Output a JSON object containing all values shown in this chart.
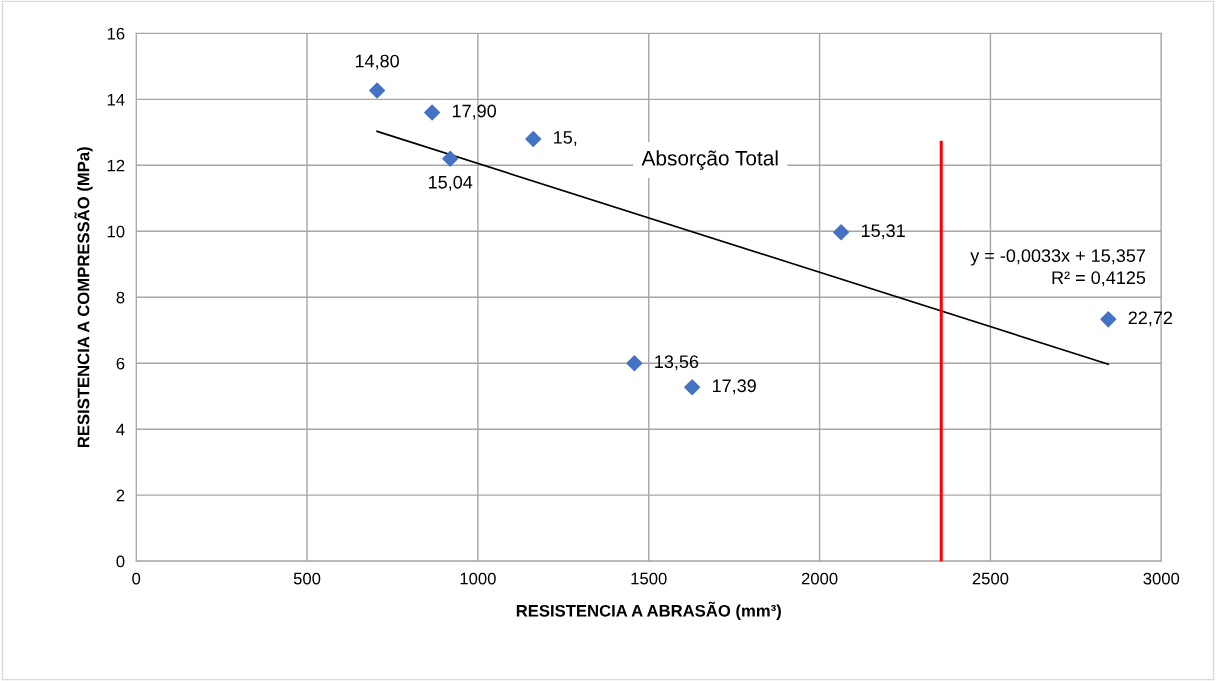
{
  "chart_data": {
    "type": "scatter",
    "xlabel": "RESISTENCIA A ABRASÃO (mm³)",
    "ylabel": "RESISTENCIA A COMPRESSÃO (MPa)",
    "xlim": [
      0,
      3000
    ],
    "xticks": [
      0,
      500,
      1000,
      1500,
      2000,
      2500,
      3000
    ],
    "ylim": [
      0,
      16
    ],
    "yticks": [
      0,
      2,
      4,
      6,
      8,
      10,
      12,
      14,
      16
    ],
    "grid": true,
    "legend": false,
    "series": [
      {
        "marker": "diamond",
        "color": "#4472c4",
        "x": [
          705,
          866,
          919,
          1162,
          1458,
          1627,
          2063,
          2845
        ],
        "values": [
          14.27,
          13.6,
          12.2,
          12.8,
          6.0,
          5.27,
          9.97,
          7.33
        ]
      },
      {
        "type": "line",
        "color": "#000000",
        "x": [
          705,
          2845
        ],
        "values": [
          13.03,
          5.97
        ]
      },
      {
        "type": "line",
        "color": "#ff0000",
        "x": [
          2356,
          2356
        ],
        "values": [
          0,
          12.7
        ]
      }
    ],
    "annotations": [
      {
        "text": "14,80",
        "x": 705,
        "y": 14.27
      },
      {
        "text": "17,90",
        "x": 866,
        "y": 13.6
      },
      {
        "text": "15,04",
        "x": 919,
        "y": 12.2
      },
      {
        "text": "15,",
        "x": 1162,
        "y": 12.8
      },
      {
        "text": "13,56",
        "x": 1458,
        "y": 6.0
      },
      {
        "text": "17,39",
        "x": 1627,
        "y": 5.27
      },
      {
        "text": "15,31",
        "x": 2063,
        "y": 9.97
      },
      {
        "text": "22,72",
        "x": 2845,
        "y": 7.33
      },
      "Absorção Total",
      "y = -0,0033x + 15,357\nR² = 0,4125"
    ]
  }
}
